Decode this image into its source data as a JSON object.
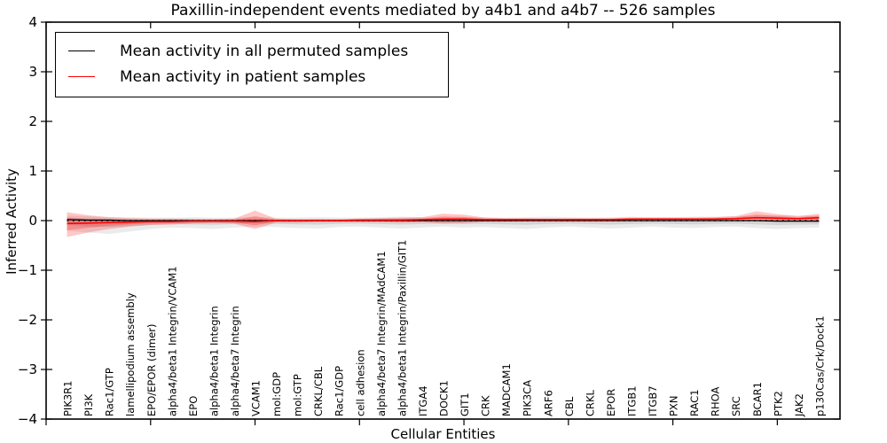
{
  "title": "Paxillin-independent events mediated by a4b1 and a4b7 -- 526 samples",
  "axes": {
    "ylabel": "Inferred Activity",
    "xlabel": "Cellular Entities",
    "yticks": [
      -4,
      -3,
      -2,
      -1,
      0,
      1,
      2,
      3,
      4
    ],
    "xticks": [
      0,
      5,
      10,
      15,
      20,
      25,
      30,
      35
    ]
  },
  "legend": {
    "items": [
      {
        "label": "Mean activity in all permuted samples",
        "color": "#000000"
      },
      {
        "label": "Mean activity in patient samples",
        "color": "#ff0000"
      }
    ]
  },
  "colors": {
    "permuted_line": "#000000",
    "patient_line": "#ff0000",
    "permuted_band": "#000000",
    "patient_band": "#ff0000",
    "zero_line": "#000000"
  },
  "chart_data": {
    "type": "line",
    "title": "Paxillin-independent events mediated by a4b1 and a4b7 -- 526 samples",
    "xlabel": "Cellular Entities",
    "ylabel": "Inferred Activity",
    "ylim": [
      -4,
      4
    ],
    "grid": false,
    "legend_position": "upper-left",
    "zero_reference_line": {
      "style": "dotted",
      "color": "#000000",
      "y": 0
    },
    "categories": [
      "PIK3R1",
      "PI3K",
      "Rac1/GTP",
      "lamellipodium assembly",
      "EPO/EPOR (dimer)",
      "alpha4/beta1 Integrin/VCAM1",
      "EPO",
      "alpha4/beta1 Integrin",
      "alpha4/beta7 Integrin",
      "VCAM1",
      "mol:GDP",
      "mol:GTP",
      "CRKL/CBL",
      "Rac1/GDP",
      "cell adhesion",
      "alpha4/beta7 Integrin/MAdCAM1",
      "alpha4/beta1 Integrin/Paxillin/GIT1",
      "ITGA4",
      "DOCK1",
      "GIT1",
      "CRK",
      "MADCAM1",
      "PIK3CA",
      "ARF6",
      "CBL",
      "CRKL",
      "EPOR",
      "ITGB1",
      "ITGB7",
      "PXN",
      "RAC1",
      "RHOA",
      "SRC",
      "BCAR1",
      "PTK2",
      "JAK2",
      "p130Cas/Crk/Dock1"
    ],
    "sigma_inner_fraction": 0.5,
    "series": [
      {
        "name": "Mean activity in all permuted samples",
        "mean": [
          0.02,
          0.01,
          0.01,
          0.0,
          0.0,
          0.0,
          0.0,
          0.0,
          0.0,
          0.0,
          0.0,
          0.0,
          0.0,
          0.0,
          0.0,
          0.0,
          0.0,
          0.0,
          0.0,
          0.0,
          0.0,
          0.0,
          0.0,
          0.0,
          0.0,
          0.0,
          0.0,
          0.0,
          0.0,
          0.0,
          0.0,
          0.0,
          0.0,
          0.0,
          -0.01,
          -0.01,
          -0.01
        ],
        "band_hi": [
          0.1,
          0.09,
          0.07,
          0.07,
          0.06,
          0.06,
          0.07,
          0.06,
          0.06,
          0.07,
          0.06,
          0.06,
          0.07,
          0.06,
          0.06,
          0.07,
          0.08,
          0.07,
          0.06,
          0.07,
          0.07,
          0.06,
          0.07,
          0.08,
          0.07,
          0.06,
          0.07,
          0.08,
          0.07,
          0.07,
          0.08,
          0.08,
          0.09,
          0.1,
          0.11,
          0.1,
          0.1
        ],
        "band_lo": [
          -0.2,
          -0.24,
          -0.27,
          -0.22,
          -0.17,
          -0.14,
          -0.15,
          -0.17,
          -0.14,
          -0.12,
          -0.13,
          -0.15,
          -0.16,
          -0.13,
          -0.12,
          -0.14,
          -0.16,
          -0.14,
          -0.12,
          -0.14,
          -0.13,
          -0.15,
          -0.17,
          -0.14,
          -0.12,
          -0.14,
          -0.16,
          -0.14,
          -0.12,
          -0.14,
          -0.15,
          -0.13,
          -0.12,
          -0.15,
          -0.17,
          -0.15,
          -0.14
        ]
      },
      {
        "name": "Mean activity in patient samples",
        "mean": [
          -0.06,
          -0.05,
          -0.04,
          -0.03,
          -0.02,
          -0.02,
          -0.01,
          -0.01,
          -0.01,
          -0.02,
          0.0,
          0.0,
          0.0,
          0.0,
          0.01,
          0.01,
          0.01,
          0.02,
          0.03,
          0.03,
          0.02,
          0.02,
          0.02,
          0.02,
          0.02,
          0.02,
          0.02,
          0.03,
          0.03,
          0.03,
          0.03,
          0.03,
          0.04,
          0.06,
          0.05,
          0.04,
          0.06
        ],
        "band_hi": [
          0.17,
          0.11,
          0.07,
          0.05,
          0.04,
          0.04,
          0.03,
          0.03,
          0.04,
          0.2,
          0.04,
          0.03,
          0.03,
          0.03,
          0.04,
          0.05,
          0.06,
          0.07,
          0.14,
          0.12,
          0.06,
          0.05,
          0.05,
          0.04,
          0.05,
          0.05,
          0.05,
          0.06,
          0.06,
          0.06,
          0.06,
          0.07,
          0.09,
          0.19,
          0.13,
          0.09,
          0.14
        ],
        "band_lo": [
          -0.33,
          -0.24,
          -0.17,
          -0.12,
          -0.09,
          -0.08,
          -0.06,
          -0.05,
          -0.06,
          -0.17,
          -0.04,
          -0.04,
          -0.03,
          -0.03,
          -0.03,
          -0.03,
          -0.04,
          -0.03,
          -0.06,
          -0.05,
          -0.02,
          -0.02,
          -0.01,
          -0.01,
          -0.01,
          -0.01,
          -0.01,
          -0.01,
          0.0,
          0.0,
          0.0,
          0.0,
          0.0,
          0.01,
          -0.01,
          -0.01,
          -0.03
        ]
      }
    ]
  }
}
